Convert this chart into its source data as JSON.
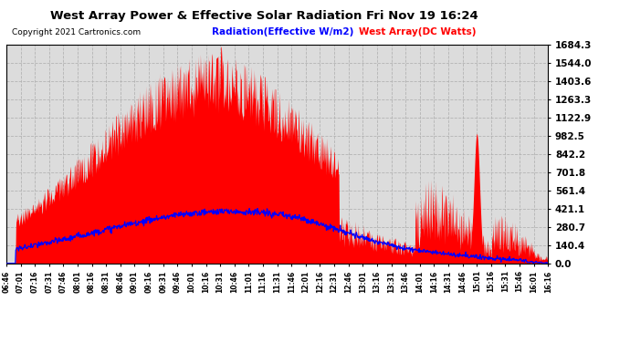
{
  "title": "West Array Power & Effective Solar Radiation Fri Nov 19 16:24",
  "copyright": "Copyright 2021 Cartronics.com",
  "legend_radiation": "Radiation(Effective W/m2)",
  "legend_west": "West Array(DC Watts)",
  "radiation_color": "blue",
  "west_color": "red",
  "background_color": "#ffffff",
  "plot_bg_color": "#dcdcdc",
  "yticks": [
    0.0,
    140.4,
    280.7,
    421.1,
    561.4,
    701.8,
    842.2,
    982.5,
    1122.9,
    1263.3,
    1403.6,
    1544.0,
    1684.3
  ],
  "ymax": 1684.3,
  "xtick_labels": [
    "06:46",
    "07:01",
    "07:16",
    "07:31",
    "07:46",
    "08:01",
    "08:16",
    "08:31",
    "08:46",
    "09:01",
    "09:16",
    "09:31",
    "09:46",
    "10:01",
    "10:16",
    "10:31",
    "10:46",
    "11:01",
    "11:16",
    "11:31",
    "11:46",
    "12:01",
    "12:16",
    "12:31",
    "12:46",
    "13:01",
    "13:16",
    "13:31",
    "13:46",
    "14:01",
    "14:16",
    "14:31",
    "14:46",
    "15:01",
    "15:16",
    "15:31",
    "15:46",
    "16:01",
    "16:16"
  ]
}
